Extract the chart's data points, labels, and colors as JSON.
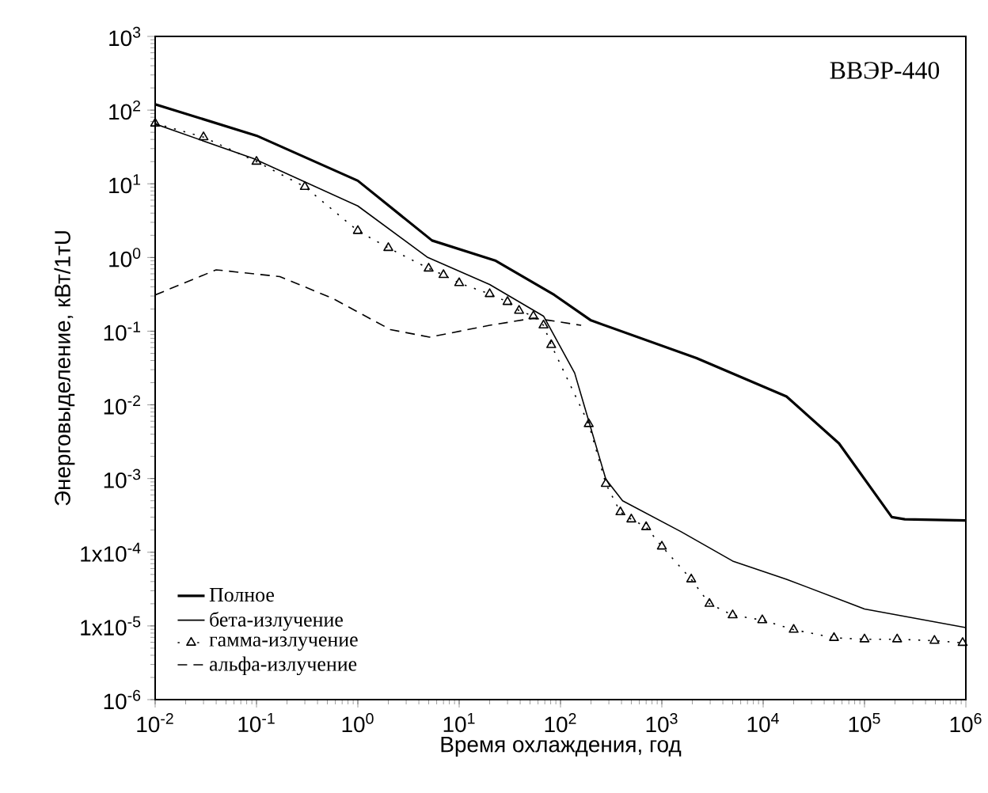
{
  "chart_data": {
    "type": "line",
    "xlabel": "Время охлаждения, год",
    "ylabel": "Энерговыделение, кВт/1тU",
    "annotations": [
      "ВВЭР-440"
    ],
    "log": "xy",
    "legend": "bottom left",
    "grid": false,
    "xlim": [
      0.01,
      1000000
    ],
    "ylim": [
      1e-06,
      1000
    ],
    "xticks": [
      {
        "value": 0.01,
        "label": "10$^{-2}$"
      },
      {
        "value": 0.1,
        "label": "10$^{-1}$"
      },
      {
        "value": 1,
        "label": "10$^{0}$"
      },
      {
        "value": 10,
        "label": "10$^{1}$"
      },
      {
        "value": 100,
        "label": "10$^{2}$"
      },
      {
        "value": 1000,
        "label": "10$^{3}$"
      },
      {
        "value": 10000,
        "label": "10$^{4}$"
      },
      {
        "value": 100000,
        "label": "10$^{5}$"
      },
      {
        "value": 1000000,
        "label": "10$^{6}$"
      }
    ],
    "yticks": [
      {
        "value": 1e-06,
        "label": "10$^{-6}$"
      },
      {
        "value": 1e-05,
        "label": "1x10$^{-5}$"
      },
      {
        "value": 0.0001,
        "label": "1x10$^{-4}$"
      },
      {
        "value": 0.001,
        "label": "10$^{-3}$"
      },
      {
        "value": 0.01,
        "label": "10$^{-2}$"
      },
      {
        "value": 0.1,
        "label": "10$^{-1}$"
      },
      {
        "value": 1,
        "label": "10$^{0}$"
      },
      {
        "value": 10,
        "label": "10$^{1}$"
      },
      {
        "value": 100,
        "label": "10$^{2}$"
      },
      {
        "value": 1000,
        "label": "10$^{3}$"
      }
    ],
    "series": [
      {
        "name": "Полное",
        "color": "#000000",
        "line_style": "solid",
        "marker": "none",
        "x": [
          0.01,
          0.1,
          1,
          5.4,
          23,
          87,
          200,
          2200,
          17000,
          56000,
          186000,
          250000,
          1000000
        ],
        "values": [
          120,
          45,
          11,
          1.7,
          0.9,
          0.31,
          0.14,
          0.043,
          0.013,
          0.003,
          0.0003,
          0.00028,
          0.00027
        ]
      },
      {
        "name": "бета-излучение",
        "color": "#000000",
        "line_style": "solid",
        "marker": "none",
        "x": [
          0.01,
          0.093,
          1,
          4.9,
          20,
          68,
          138,
          280,
          410,
          1550,
          5000,
          17000,
          100000,
          1000000
        ],
        "values": [
          65,
          22,
          5,
          1.0,
          0.43,
          0.16,
          0.027,
          0.00098,
          0.0005,
          0.00019,
          7.6e-05,
          4.3e-05,
          1.7e-05,
          9.5e-06
        ]
      },
      {
        "name": "гамма-излучение",
        "color": "#000000",
        "line_style": "dotted",
        "marker": "triangle",
        "x": [
          0.01,
          0.03,
          0.1,
          0.3,
          1,
          2,
          5,
          7,
          10,
          20,
          30,
          39,
          54,
          68,
          81,
          190,
          280,
          390,
          500,
          700,
          1000,
          1950,
          2950,
          5000,
          9800,
          20000,
          50000,
          100000,
          210000,
          490000,
          930000
        ],
        "values": [
          66,
          43,
          20,
          9.1,
          2.3,
          1.35,
          0.71,
          0.58,
          0.45,
          0.32,
          0.25,
          0.19,
          0.16,
          0.12,
          0.065,
          0.0055,
          0.00085,
          0.00035,
          0.00028,
          0.00022,
          0.00012,
          4.3e-05,
          2e-05,
          1.4e-05,
          1.2e-05,
          8.9e-06,
          6.9e-06,
          6.6e-06,
          6.6e-06,
          6.3e-06,
          5.9e-06
        ]
      },
      {
        "name": "альфа-излучение",
        "color": "#000000",
        "line_style": "dashed",
        "marker": "none",
        "x": [
          0.01,
          0.04,
          0.17,
          0.56,
          2.1,
          5.1,
          20,
          54,
          78,
          160
        ],
        "values": [
          0.31,
          0.68,
          0.55,
          0.28,
          0.105,
          0.083,
          0.12,
          0.15,
          0.14,
          0.12
        ]
      }
    ]
  }
}
